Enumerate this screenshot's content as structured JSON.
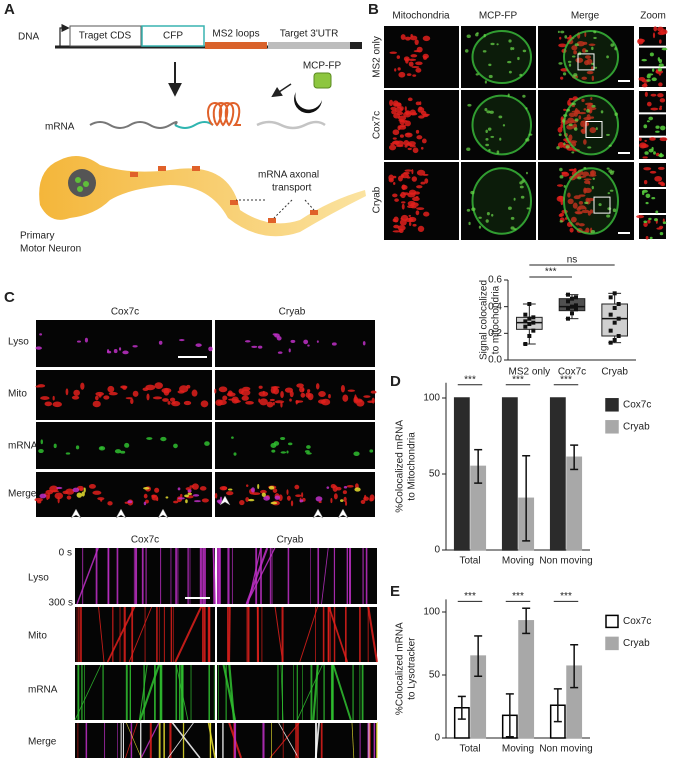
{
  "panel_labels": [
    "A",
    "B",
    "C",
    "D",
    "E"
  ],
  "panel_a": {
    "dna": "DNA",
    "segments": [
      "Traget CDS",
      "CFP",
      "MS2 loops",
      "Target 3'UTR"
    ],
    "mcp": "MCP-FP",
    "mrna": "mRNA",
    "transport": [
      "mRNA axonal",
      "transport"
    ],
    "neuron": [
      "Primary",
      "Motor Neuron"
    ]
  },
  "panel_b": {
    "columns": [
      "Mitochondria",
      "MCP-FP",
      "Merge",
      "Zoom"
    ],
    "rows": [
      "MS2 only",
      "Cox7c",
      "Cryab"
    ]
  },
  "panel_c": {
    "columns": [
      "Cox7c",
      "Cryab"
    ],
    "rows": [
      "Lyso",
      "Mito",
      "mRNA",
      "Merge"
    ],
    "kymo_columns": [
      "Cox7c",
      "Cryab"
    ],
    "kymo_rows": [
      "Lyso",
      "Mito",
      "mRNA",
      "Merge"
    ],
    "time_labels": [
      "0 s",
      "300 s"
    ]
  },
  "chart_data": [
    {
      "type": "box",
      "y_label": [
        "Signal colocalized",
        "to mitochondria"
      ],
      "categories": [
        "MS2 only",
        "Cox7c",
        "Cryab"
      ],
      "boxes": [
        {
          "min": 0.12,
          "q1": 0.23,
          "median": 0.28,
          "q3": 0.32,
          "max": 0.42,
          "color": "#d0d0d0",
          "points": [
            0.12,
            0.18,
            0.22,
            0.25,
            0.27,
            0.28,
            0.29,
            0.31,
            0.32,
            0.34,
            0.42
          ]
        },
        {
          "min": 0.31,
          "q1": 0.37,
          "median": 0.4,
          "q3": 0.46,
          "max": 0.49,
          "color": "#505050",
          "points": [
            0.31,
            0.35,
            0.38,
            0.39,
            0.4,
            0.41,
            0.44,
            0.46,
            0.47,
            0.49
          ]
        },
        {
          "min": 0.13,
          "q1": 0.18,
          "median": 0.31,
          "q3": 0.42,
          "max": 0.5,
          "color": "#d0d0d0",
          "points": [
            0.13,
            0.15,
            0.18,
            0.22,
            0.28,
            0.31,
            0.34,
            0.39,
            0.42,
            0.47,
            0.5
          ]
        }
      ],
      "annotations": [
        {
          "text": "***",
          "from": 0,
          "to": 1
        },
        {
          "text": "ns",
          "from": 0,
          "to": 2
        }
      ],
      "ylim": [
        0,
        0.6
      ],
      "yticks": [
        {
          "value": 0,
          "label": "0.0"
        },
        0.2,
        0.4,
        0.6
      ]
    },
    {
      "type": "bar",
      "y_label": [
        "%Colocalized mRNA",
        "to Mitochondria"
      ],
      "categories": [
        "Total",
        "Moving",
        "Non moving"
      ],
      "series": [
        {
          "name": "Cox7c",
          "color": "#2b2b2b",
          "edgecolor": "#2b2b2b",
          "values": [
            100,
            100,
            100
          ]
        },
        {
          "name": "Cryab",
          "color": "#a8a8a8",
          "edgecolor": "#a8a8a8",
          "values": [
            55,
            34,
            61
          ],
          "errors": [
            11,
            28,
            8
          ]
        }
      ],
      "annotations": [
        "***",
        "***",
        "***"
      ],
      "ylim": [
        0,
        110
      ],
      "yticks": [
        0,
        50,
        100
      ]
    },
    {
      "type": "bar",
      "y_label": [
        "%Colocalized mRNA",
        "to Lysotracker"
      ],
      "categories": [
        "Total",
        "Moving",
        "Non moving"
      ],
      "series": [
        {
          "name": "Cox7c",
          "color": "#ffffff",
          "edgecolor": "#000000",
          "values": [
            24,
            18,
            26
          ],
          "errors": [
            9,
            17,
            13
          ]
        },
        {
          "name": "Cryab",
          "color": "#a8a8a8",
          "edgecolor": "#a8a8a8",
          "values": [
            65,
            93,
            57
          ],
          "errors": [
            16,
            10,
            17
          ]
        }
      ],
      "annotations": [
        "***",
        "***",
        "***"
      ],
      "ylim": [
        0,
        110
      ],
      "yticks": [
        0,
        50,
        100
      ]
    }
  ]
}
